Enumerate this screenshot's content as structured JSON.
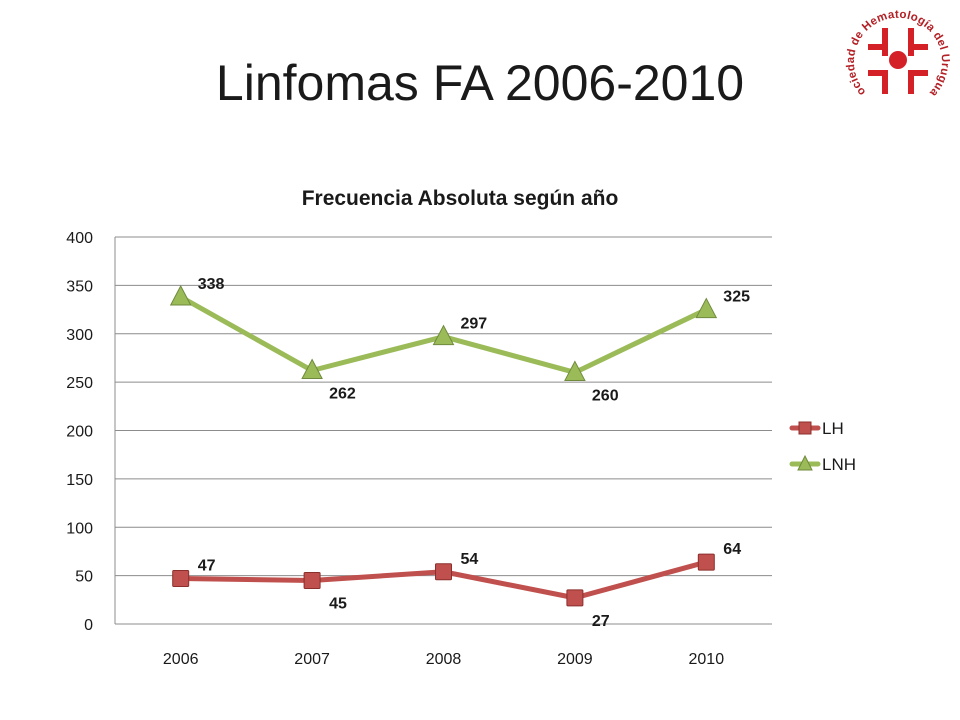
{
  "slide": {
    "title": "Linfomas FA 2006-2010"
  },
  "logo": {
    "icon": "hematology-society-seal-icon",
    "text": "Sociedad de Hematología del Uruguay"
  },
  "chart_data": {
    "type": "line",
    "title": "Frecuencia Absoluta según año",
    "xlabel": "",
    "ylabel": "",
    "categories": [
      "2006",
      "2007",
      "2008",
      "2009",
      "2010"
    ],
    "ylim": [
      0,
      400
    ],
    "yticks": [
      0,
      50,
      100,
      150,
      200,
      250,
      300,
      350,
      400
    ],
    "grid": true,
    "legend_position": "right",
    "series": [
      {
        "name": "LH",
        "values": [
          47,
          45,
          54,
          27,
          64
        ],
        "color": "#c0504d",
        "marker": "square"
      },
      {
        "name": "LNH",
        "values": [
          338,
          262,
          297,
          260,
          325
        ],
        "color": "#9bbb59",
        "marker": "triangle"
      }
    ]
  }
}
